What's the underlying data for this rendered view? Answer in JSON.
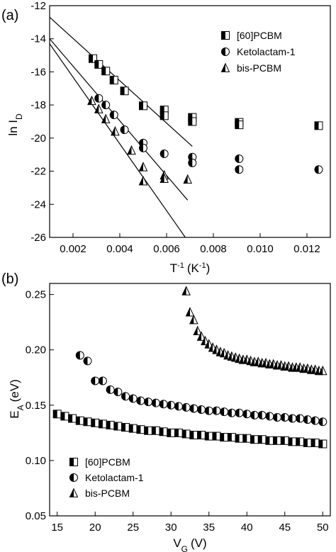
{
  "chart_data": [
    {
      "type": "scatter",
      "panel_label": "(a)",
      "title": "",
      "xlabel": "T",
      "xlabel_sup": "-1",
      "xlabel_units": "(K",
      "xlabel_units_sup": "-1",
      "xlabel_units_close": ")",
      "ylabel": "ln I",
      "ylabel_sub": "D",
      "xlim": [
        0.001,
        0.013
      ],
      "ylim": [
        -26,
        -12
      ],
      "xticks": [
        "0.002",
        "0.004",
        "0.006",
        "0.008",
        "0.010",
        "0.012"
      ],
      "xtick_values": [
        0.002,
        0.004,
        0.006,
        0.008,
        0.01,
        0.012
      ],
      "yticks": [
        "-12",
        "-14",
        "-16",
        "-18",
        "-20",
        "-22",
        "-24",
        "-26"
      ],
      "ytick_values": [
        -12,
        -14,
        -16,
        -18,
        -20,
        -22,
        -24,
        -26
      ],
      "legend_position": "top-right",
      "series": [
        {
          "name": "[60]PCBM",
          "marker": "square-half",
          "points": [
            [
              0.00285,
              -15.2
            ],
            [
              0.0031,
              -15.55
            ],
            [
              0.0034,
              -15.95
            ],
            [
              0.00375,
              -16.5
            ],
            [
              0.0042,
              -17.15
            ],
            [
              0.005,
              -18.05
            ],
            [
              0.0059,
              -18.3
            ],
            [
              0.0059,
              -18.65
            ],
            [
              0.0071,
              -18.75
            ],
            [
              0.0071,
              -19.0
            ],
            [
              0.0091,
              -19.05
            ],
            [
              0.0091,
              -19.2
            ],
            [
              0.0125,
              -19.25
            ]
          ],
          "fit": [
            [
              0.001,
              -12.7
            ],
            [
              0.0071,
              -20.5
            ]
          ]
        },
        {
          "name": "Ketolactam-1",
          "marker": "circle-half",
          "points": [
            [
              0.0031,
              -17.6
            ],
            [
              0.0034,
              -18.0
            ],
            [
              0.00375,
              -18.6
            ],
            [
              0.0042,
              -19.5
            ],
            [
              0.005,
              -20.3
            ],
            [
              0.005,
              -20.6
            ],
            [
              0.0059,
              -20.95
            ],
            [
              0.0071,
              -21.15
            ],
            [
              0.0071,
              -21.5
            ],
            [
              0.0091,
              -21.25
            ],
            [
              0.0091,
              -21.9
            ],
            [
              0.0125,
              -21.9
            ]
          ],
          "fit": [
            [
              0.001,
              -14.0
            ],
            [
              0.0069,
              -23.75
            ]
          ]
        },
        {
          "name": "bis-PCBM",
          "marker": "triangle-half",
          "points": [
            [
              0.0028,
              -17.75
            ],
            [
              0.0031,
              -18.25
            ],
            [
              0.0034,
              -18.85
            ],
            [
              0.0038,
              -19.6
            ],
            [
              0.0045,
              -20.75
            ],
            [
              0.005,
              -21.75
            ],
            [
              0.005,
              -22.6
            ],
            [
              0.0059,
              -22.25
            ],
            [
              0.0059,
              -22.45
            ],
            [
              0.0069,
              -22.5
            ]
          ],
          "fit": [
            [
              0.001,
              -14.3
            ],
            [
              0.0068,
              -26.0
            ]
          ]
        }
      ]
    },
    {
      "type": "scatter",
      "panel_label": "(b)",
      "title": "",
      "xlabel": "V",
      "xlabel_sub": "G",
      "xlabel_units": "(V)",
      "ylabel": "E",
      "ylabel_sub": "A",
      "ylabel_units": "(eV)",
      "xlim": [
        14,
        51
      ],
      "ylim": [
        0.05,
        0.26
      ],
      "xticks": [
        "15",
        "20",
        "25",
        "30",
        "35",
        "40",
        "45",
        "50"
      ],
      "xtick_values": [
        15,
        20,
        25,
        30,
        35,
        40,
        45,
        50
      ],
      "yticks": [
        "0.05",
        "0.10",
        "0.15",
        "0.20",
        "0.25"
      ],
      "ytick_values": [
        0.05,
        0.1,
        0.15,
        0.2,
        0.25
      ],
      "legend_position": "bottom-left",
      "series": [
        {
          "name": "[60]PCBM",
          "marker": "square-half",
          "x": [
            15,
            16,
            17,
            18,
            19,
            20,
            21,
            22,
            23,
            24,
            25,
            26,
            27,
            28,
            29,
            30,
            31,
            32,
            33,
            34,
            35,
            36,
            37,
            38,
            39,
            40,
            41,
            42,
            43,
            44,
            45,
            46,
            47,
            48,
            49,
            50
          ],
          "y": [
            0.142,
            0.14,
            0.138,
            0.136,
            0.135,
            0.134,
            0.133,
            0.132,
            0.131,
            0.13,
            0.129,
            0.128,
            0.127,
            0.127,
            0.126,
            0.125,
            0.125,
            0.124,
            0.123,
            0.123,
            0.122,
            0.122,
            0.121,
            0.121,
            0.12,
            0.12,
            0.119,
            0.119,
            0.118,
            0.118,
            0.118,
            0.117,
            0.117,
            0.116,
            0.116,
            0.115
          ]
        },
        {
          "name": "Ketolactam-1",
          "marker": "circle-half",
          "x": [
            18,
            19,
            20,
            21,
            22,
            23,
            24,
            25,
            26,
            27,
            28,
            29,
            30,
            31,
            32,
            33,
            34,
            35,
            36,
            37,
            38,
            39,
            40,
            41,
            42,
            43,
            44,
            45,
            46,
            47,
            48,
            49,
            50
          ],
          "y": [
            0.195,
            0.19,
            0.172,
            0.172,
            0.164,
            0.162,
            0.158,
            0.156,
            0.154,
            0.153,
            0.152,
            0.151,
            0.15,
            0.149,
            0.148,
            0.147,
            0.146,
            0.145,
            0.145,
            0.144,
            0.143,
            0.143,
            0.142,
            0.141,
            0.141,
            0.14,
            0.139,
            0.139,
            0.138,
            0.138,
            0.137,
            0.136,
            0.135
          ]
        },
        {
          "name": "bis-PCBM",
          "marker": "triangle-half",
          "x": [
            32,
            32.5,
            33,
            33.5,
            34,
            34.5,
            35,
            35.5,
            36,
            36.5,
            37,
            37.5,
            38,
            38.5,
            39,
            39.5,
            40,
            40.5,
            41,
            41.5,
            42,
            42.5,
            43,
            43.5,
            44,
            44.5,
            45,
            45.5,
            46,
            46.5,
            47,
            47.5,
            48,
            48.5,
            49,
            49.5,
            50
          ],
          "y": [
            0.253,
            0.234,
            0.227,
            0.217,
            0.212,
            0.208,
            0.205,
            0.202,
            0.2,
            0.198,
            0.197,
            0.195,
            0.194,
            0.193,
            0.192,
            0.191,
            0.191,
            0.19,
            0.189,
            0.189,
            0.188,
            0.188,
            0.187,
            0.187,
            0.186,
            0.186,
            0.185,
            0.185,
            0.184,
            0.184,
            0.184,
            0.183,
            0.183,
            0.182,
            0.182,
            0.181,
            0.181
          ]
        }
      ]
    }
  ]
}
